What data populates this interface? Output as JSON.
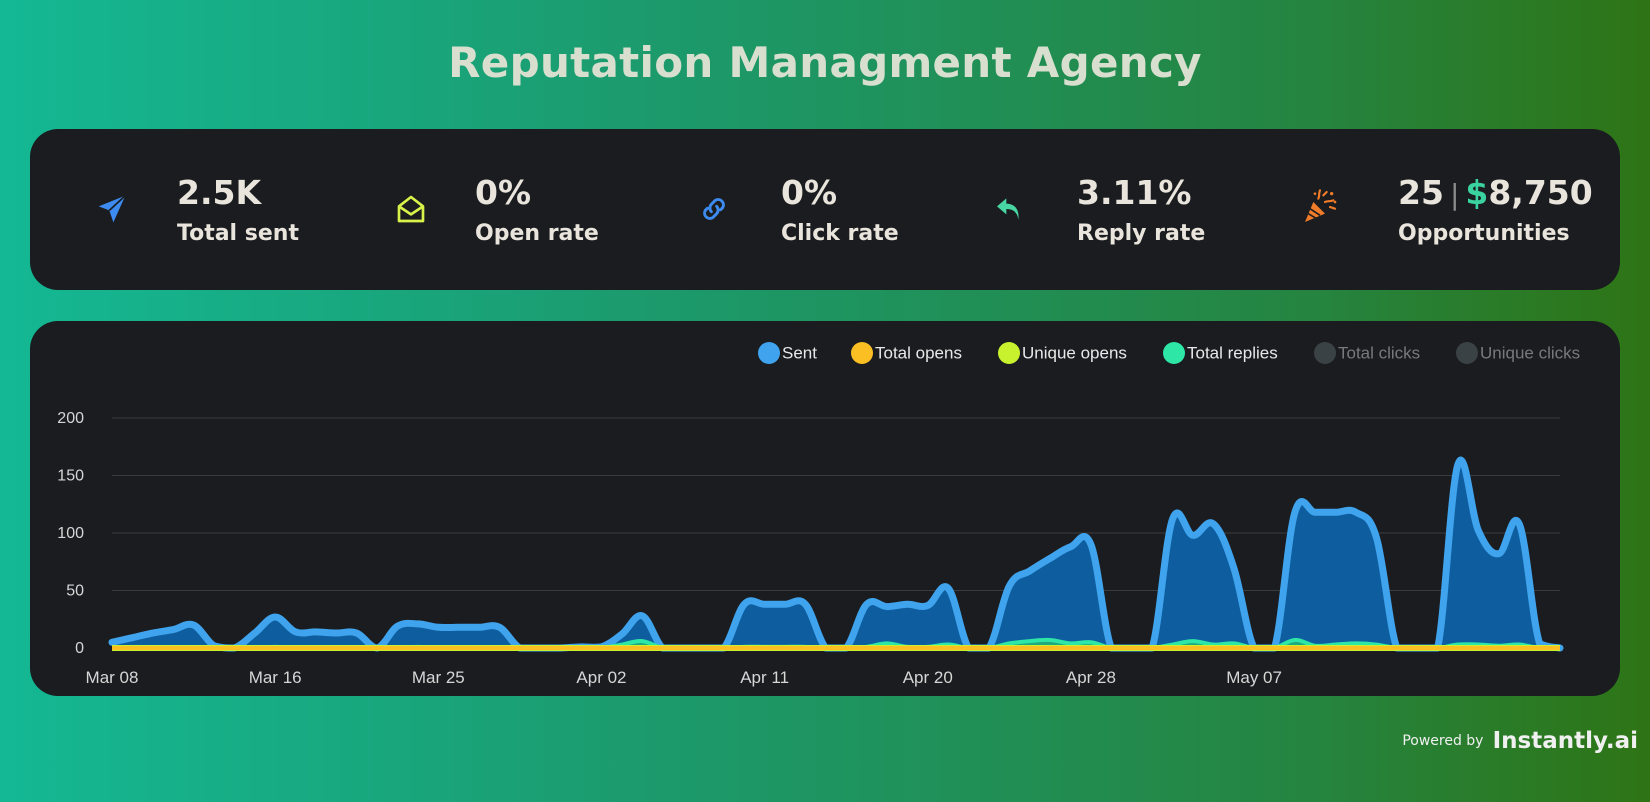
{
  "page": {
    "title": "Reputation Managment Agency"
  },
  "stats": {
    "total_sent": {
      "value": "2.5K",
      "label": "Total sent",
      "icon": "paper-plane-icon",
      "color": "#3d8bf0"
    },
    "open_rate": {
      "value": "0%",
      "label": "Open rate",
      "icon": "envelope-open-icon",
      "color": "#d9f24a"
    },
    "click_rate": {
      "value": "0%",
      "label": "Click rate",
      "icon": "link-icon",
      "color": "#3d8bf0"
    },
    "reply_rate": {
      "value": "3.11%",
      "label": "Reply rate",
      "icon": "reply-arrow-icon",
      "color": "#48d6a2"
    },
    "opportunities": {
      "count": "25",
      "separator": "|",
      "currency": "$",
      "amount": "8,750",
      "label": "Opportunities",
      "icon": "party-popper-icon",
      "color": "#f07c2a"
    }
  },
  "legend": [
    {
      "label": "Sent",
      "color": "#3fa3ee",
      "active": true
    },
    {
      "label": "Total opens",
      "color": "#fbbf24",
      "active": true
    },
    {
      "label": "Unique opens",
      "color": "#c8f22e",
      "active": true
    },
    {
      "label": "Total replies",
      "color": "#2ee6a6",
      "active": true
    },
    {
      "label": "Total clicks",
      "color": "#3b4246",
      "active": false
    },
    {
      "label": "Unique clicks",
      "color": "#3b4246",
      "active": false
    }
  ],
  "chart_data": {
    "type": "area",
    "ylim": [
      0,
      200
    ],
    "yticks": [
      0,
      50,
      100,
      150,
      200
    ],
    "grid": true,
    "legend_position": "top-right",
    "x_tick_labels": [
      "Mar 08",
      "Mar 16",
      "Mar 25",
      "Apr 02",
      "Apr 11",
      "Apr 20",
      "Apr 28",
      "May 07"
    ],
    "x_tick_index": [
      0,
      8,
      16,
      24,
      32,
      40,
      48,
      56
    ],
    "series": [
      {
        "name": "Sent",
        "color": "#3fa3ee",
        "values": [
          5,
          9,
          13,
          16,
          20,
          2,
          0,
          13,
          27,
          14,
          14,
          13,
          13,
          0,
          19,
          21,
          18,
          18,
          18,
          18,
          0,
          0,
          0,
          1,
          1,
          12,
          28,
          0,
          0,
          0,
          0,
          38,
          38,
          38,
          38,
          0,
          0,
          38,
          36,
          38,
          37,
          52,
          0,
          0,
          54,
          67,
          78,
          88,
          90,
          0,
          0,
          0,
          112,
          98,
          108,
          70,
          0,
          0,
          118,
          118,
          118,
          118,
          96,
          0,
          0,
          0,
          160,
          102,
          82,
          108,
          4,
          0
        ]
      },
      {
        "name": "Total replies",
        "color": "#2ee6a6",
        "values": [
          0,
          0,
          0,
          0,
          0,
          0,
          0,
          0,
          1,
          0,
          0,
          0,
          0,
          0,
          0,
          1,
          0,
          0,
          0,
          0,
          0,
          0,
          0,
          0,
          0,
          3,
          6,
          0,
          0,
          0,
          0,
          1,
          1,
          1,
          1,
          0,
          0,
          1,
          4,
          1,
          1,
          3,
          0,
          0,
          4,
          6,
          7,
          4,
          5,
          0,
          0,
          0,
          3,
          6,
          3,
          4,
          0,
          0,
          7,
          2,
          3,
          4,
          3,
          0,
          0,
          0,
          3,
          3,
          2,
          3,
          0,
          0
        ]
      },
      {
        "name": "Unique opens",
        "color": "#c8f22e",
        "values": [
          0
        ]
      },
      {
        "name": "Total opens",
        "color": "#fbbf24",
        "values": [
          0
        ]
      }
    ]
  },
  "footer": {
    "powered_by": "Powered by",
    "brand": "Instantly.ai"
  }
}
